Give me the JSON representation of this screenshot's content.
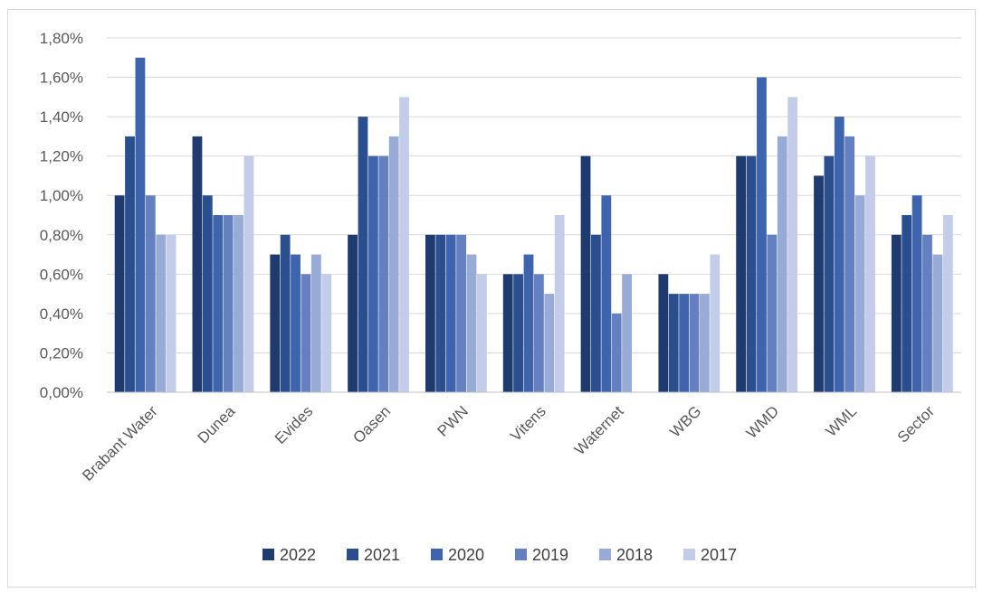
{
  "chart_data": {
    "type": "bar",
    "categories": [
      "Brabant Water",
      "Dunea",
      "Evides",
      "Oasen",
      "PWN",
      "Vitens",
      "Waternet",
      "WBG",
      "WMD",
      "WML",
      "Sector"
    ],
    "series": [
      {
        "name": "2022",
        "color": "#1f3a6e",
        "values": [
          1.0,
          1.3,
          0.7,
          0.8,
          0.8,
          0.6,
          1.2,
          0.6,
          1.2,
          1.1,
          0.8
        ]
      },
      {
        "name": "2021",
        "color": "#2b4e8e",
        "values": [
          1.3,
          1.0,
          0.8,
          1.4,
          0.8,
          0.6,
          0.8,
          0.5,
          1.2,
          1.2,
          0.9
        ]
      },
      {
        "name": "2020",
        "color": "#3e64ae",
        "values": [
          1.7,
          0.9,
          0.7,
          1.2,
          0.8,
          0.7,
          1.0,
          0.5,
          1.6,
          1.4,
          1.0
        ]
      },
      {
        "name": "2019",
        "color": "#6580c0",
        "values": [
          1.0,
          0.9,
          0.6,
          1.2,
          0.8,
          0.6,
          0.4,
          0.5,
          0.8,
          1.3,
          0.8
        ]
      },
      {
        "name": "2018",
        "color": "#98aad6",
        "values": [
          0.8,
          0.9,
          0.7,
          1.3,
          0.7,
          0.5,
          0.6,
          0.5,
          1.3,
          1.0,
          0.7
        ]
      },
      {
        "name": "2017",
        "color": "#c3cde9",
        "values": [
          0.8,
          1.2,
          0.6,
          1.5,
          0.6,
          0.9,
          null,
          0.7,
          1.5,
          1.2,
          0.9
        ]
      }
    ],
    "y_ticks": [
      "0,00%",
      "0,20%",
      "0,40%",
      "0,60%",
      "0,80%",
      "1,00%",
      "1,20%",
      "1,40%",
      "1,60%",
      "1,80%"
    ],
    "ylim": [
      0,
      1.8
    ],
    "y_unit": "%",
    "grid": true,
    "legend_position": "bottom",
    "title": "",
    "xlabel": "",
    "ylabel": ""
  }
}
